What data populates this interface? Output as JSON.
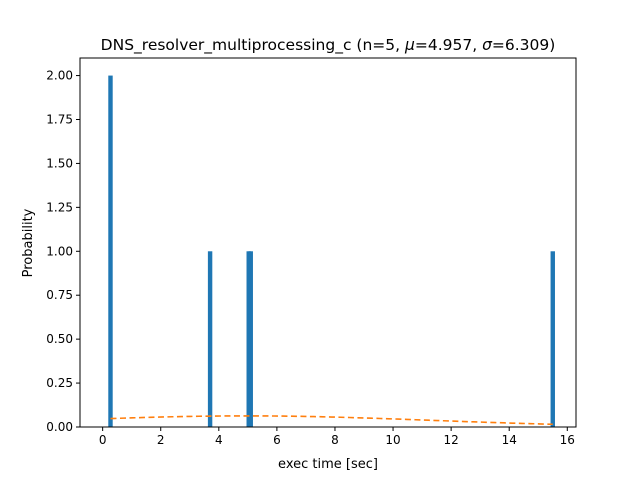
{
  "chart_data": {
    "type": "bar",
    "title_text": "DNS_resolver_multiprocessing_c (n=5, ",
    "title_mu_symbol": "μ",
    "title_mu_value": "=4.957, ",
    "title_sigma_symbol": "σ",
    "title_sigma_value": "=6.309)",
    "xlabel": "exec time [sec]",
    "ylabel": "Probability",
    "xlim": [
      -0.78,
      16.3
    ],
    "ylim": [
      0,
      2.1
    ],
    "xticks": [
      0,
      2,
      4,
      6,
      8,
      10,
      12,
      14,
      16
    ],
    "xtick_labels": [
      "0",
      "2",
      "4",
      "6",
      "8",
      "10",
      "12",
      "14",
      "16"
    ],
    "yticks": [
      0,
      0.25,
      0.5,
      0.75,
      1.0,
      1.25,
      1.5,
      1.75,
      2.0
    ],
    "ytick_labels": [
      "0.00",
      "0.25",
      "0.50",
      "0.75",
      "1.00",
      "1.25",
      "1.50",
      "1.75",
      "2.00"
    ],
    "bar_width": 0.152,
    "bars": [
      {
        "x": 0.27,
        "height": 2.0
      },
      {
        "x": 3.7,
        "height": 1.0
      },
      {
        "x": 5.03,
        "height": 1.0
      },
      {
        "x": 5.1,
        "height": 1.0
      },
      {
        "x": 15.5,
        "height": 1.0
      }
    ],
    "fit_curve": {
      "style": "dashed",
      "mean": 4.957,
      "std": 6.309,
      "x_range": [
        0.27,
        15.5
      ]
    },
    "colors": {
      "bars": "#1f77b4",
      "fit": "#ff7f0e"
    },
    "grid": false
  }
}
